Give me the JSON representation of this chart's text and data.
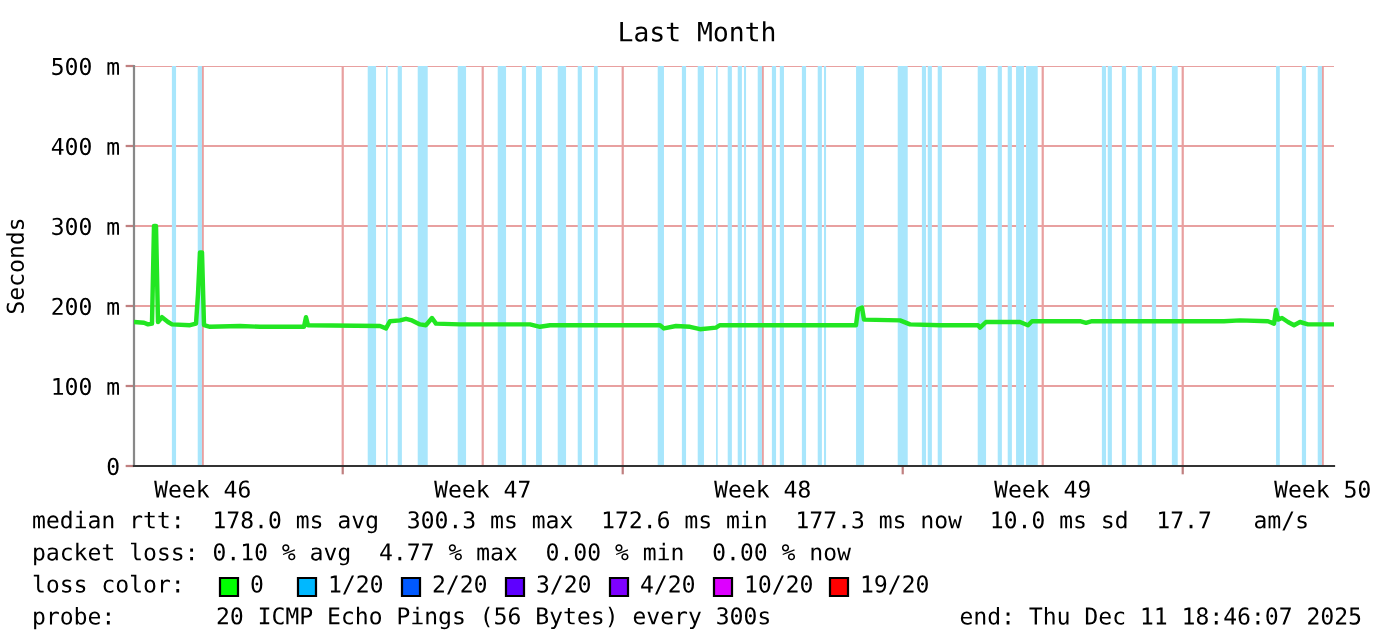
{
  "chart_data": {
    "type": "line",
    "title": "Last Month",
    "ylabel": "Seconds",
    "x": [
      "2025-11-11T18:46",
      "2025-11-12T00:46",
      "2025-11-12T03:10",
      "2025-11-12T05:34",
      "2025-11-12T06:46",
      "2025-11-12T07:58",
      "2025-11-12T09:10",
      "2025-11-12T11:34",
      "2025-11-12T15:10",
      "2025-11-12T17:34",
      "2025-11-13T04:22",
      "2025-11-13T07:58",
      "2025-11-13T09:10",
      "2025-11-13T10:22",
      "2025-11-13T11:34",
      "2025-11-13T12:46",
      "2025-11-13T16:22",
      "2025-11-14T10:22",
      "2025-11-14T22:22",
      "2025-11-16T00:46",
      "2025-11-16T01:58",
      "2025-11-16T03:10",
      "2025-11-17T22:22",
      "2025-11-18T01:58",
      "2025-11-18T04:22",
      "2025-11-18T10:22",
      "2025-11-18T13:58",
      "2025-11-18T17:34",
      "2025-11-18T22:22",
      "2025-11-19T01:58",
      "2025-11-19T05:34",
      "2025-11-19T07:58",
      "2025-11-19T22:22",
      "2025-11-21T16:22",
      "2025-11-21T22:22",
      "2025-11-22T04:22",
      "2025-11-24T22:22",
      "2025-11-25T00:46",
      "2025-11-25T07:58",
      "2025-11-25T16:22",
      "2025-11-25T22:22",
      "2025-11-26T07:58",
      "2025-11-26T10:22",
      "2025-11-29T19:58",
      "2025-11-29T21:10",
      "2025-11-29T23:34",
      "2025-11-30T00:46",
      "2025-11-30T22:22",
      "2025-12-01T04:22",
      "2025-12-01T22:22",
      "2025-12-02T21:10",
      "2025-12-02T22:22",
      "2025-12-03T01:58",
      "2025-12-03T22:22",
      "2025-12-04T03:10",
      "2025-12-04T05:34",
      "2025-12-05T10:22",
      "2025-12-05T13:58",
      "2025-12-05T17:34",
      "2025-12-07T22:22",
      "2025-12-09T00:46",
      "2025-12-09T10:22",
      "2025-12-10T03:10",
      "2025-12-10T06:46",
      "2025-12-10T07:58",
      "2025-12-10T09:10",
      "2025-12-10T11:34",
      "2025-12-10T15:10",
      "2025-12-10T18:46",
      "2025-12-10T22:22",
      "2025-12-11T03:10",
      "2025-12-11T18:46"
    ],
    "series": [
      {
        "color": "#22e622",
        "values": [
          180,
          179,
          177,
          178,
          300,
          300,
          180,
          186,
          180,
          177,
          176,
          178,
          215,
          267,
          267,
          176,
          174,
          175,
          174,
          174,
          186,
          176,
          175,
          172,
          181,
          182,
          184,
          182,
          177,
          176,
          185,
          178,
          177,
          177,
          174,
          176,
          176,
          172,
          175,
          174,
          171,
          173,
          176,
          176,
          196,
          198,
          183,
          182,
          177,
          176,
          176,
          173,
          180,
          180,
          176,
          181,
          181,
          179,
          181,
          181,
          181,
          182,
          181,
          178,
          195,
          183,
          185,
          180,
          176,
          180,
          177,
          177
        ]
      }
    ],
    "xlim": [
      "2025-11-11T18:46",
      "2025-12-11T18:46"
    ],
    "xticks": [
      {
        "value": "2025-11-13T12:00",
        "label": "Week 46"
      },
      {
        "value": "2025-11-17T00:00",
        "label": null
      },
      {
        "value": "2025-11-20T12:00",
        "label": "Week 47"
      },
      {
        "value": "2025-11-24T00:00",
        "label": null
      },
      {
        "value": "2025-11-27T12:00",
        "label": "Week 48"
      },
      {
        "value": "2025-12-01T00:00",
        "label": null
      },
      {
        "value": "2025-12-04T12:00",
        "label": "Week 49"
      },
      {
        "value": "2025-12-08T00:00",
        "label": null
      },
      {
        "value": "2025-12-11T12:00",
        "label": "Week 50"
      }
    ],
    "ylim": [
      0,
      500
    ],
    "yticks": [
      0,
      {
        "value": 100,
        "label": "100 m"
      },
      {
        "value": 200,
        "label": "200 m"
      },
      {
        "value": 300,
        "label": "300 m"
      },
      {
        "value": 400,
        "label": "400 m"
      },
      {
        "value": 500,
        "label": "500 m"
      }
    ],
    "grid": true,
    "marker": "none",
    "line_style": "solid",
    "bands": [
      {
        "axis": "x",
        "from": "2025-11-12T17:30",
        "to": "2025-11-12T20:00",
        "color": "#a8e6fc"
      },
      {
        "axis": "x",
        "from": "2025-11-13T09:00",
        "to": "2025-11-13T11:30",
        "color": "#a8e6fc"
      },
      {
        "axis": "x",
        "from": "2025-11-17T15:00",
        "to": "2025-11-17T20:00",
        "color": "#a8e6fc"
      },
      {
        "axis": "x",
        "from": "2025-11-18T02:00",
        "to": "2025-11-18T03:00",
        "color": "#a8e6fc"
      },
      {
        "axis": "x",
        "from": "2025-11-18T09:00",
        "to": "2025-11-18T11:30",
        "color": "#a8e6fc"
      },
      {
        "axis": "x",
        "from": "2025-11-18T21:00",
        "to": "2025-11-19T03:00",
        "color": "#a8e6fc"
      },
      {
        "axis": "x",
        "from": "2025-11-19T21:00",
        "to": "2025-11-20T02:00",
        "color": "#a8e6fc"
      },
      {
        "axis": "x",
        "from": "2025-11-20T21:00",
        "to": "2025-11-21T02:00",
        "color": "#a8e6fc"
      },
      {
        "axis": "x",
        "from": "2025-11-21T11:30",
        "to": "2025-11-21T14:00",
        "color": "#a8e6fc"
      },
      {
        "axis": "x",
        "from": "2025-11-21T20:00",
        "to": "2025-11-21T23:30",
        "color": "#a8e6fc"
      },
      {
        "axis": "x",
        "from": "2025-11-22T09:00",
        "to": "2025-11-22T14:00",
        "color": "#a8e6fc"
      },
      {
        "axis": "x",
        "from": "2025-11-22T21:00",
        "to": "2025-11-22T23:30",
        "color": "#a8e6fc"
      },
      {
        "axis": "x",
        "from": "2025-11-23T06:45",
        "to": "2025-11-23T09:00",
        "color": "#a8e6fc"
      },
      {
        "axis": "x",
        "from": "2025-11-24T21:00",
        "to": "2025-11-25T00:45",
        "color": "#a8e6fc"
      },
      {
        "axis": "x",
        "from": "2025-11-25T11:30",
        "to": "2025-11-25T14:00",
        "color": "#a8e6fc"
      },
      {
        "axis": "x",
        "from": "2025-11-25T21:00",
        "to": "2025-11-26T00:45",
        "color": "#a8e6fc"
      },
      {
        "axis": "x",
        "from": "2025-11-26T08:00",
        "to": "2025-11-26T09:00",
        "color": "#a8e6fc"
      },
      {
        "axis": "x",
        "from": "2025-11-26T15:00",
        "to": "2025-11-26T17:30",
        "color": "#a8e6fc"
      },
      {
        "axis": "x",
        "from": "2025-11-26T21:00",
        "to": "2025-11-26T23:30",
        "color": "#a8e6fc"
      },
      {
        "axis": "x",
        "from": "2025-11-27T00:45",
        "to": "2025-11-27T02:00",
        "color": "#a8e6fc"
      },
      {
        "axis": "x",
        "from": "2025-11-27T09:00",
        "to": "2025-11-27T11:30",
        "color": "#a8e6fc"
      },
      {
        "axis": "x",
        "from": "2025-11-27T17:30",
        "to": "2025-11-27T20:00",
        "color": "#a8e6fc"
      },
      {
        "axis": "x",
        "from": "2025-11-27T22:15",
        "to": "2025-11-28T00:45",
        "color": "#a8e6fc"
      },
      {
        "axis": "x",
        "from": "2025-11-28T11:30",
        "to": "2025-11-28T14:00",
        "color": "#a8e6fc"
      },
      {
        "axis": "x",
        "from": "2025-11-28T21:00",
        "to": "2025-11-28T23:30",
        "color": "#a8e6fc"
      },
      {
        "axis": "x",
        "from": "2025-11-29T00:45",
        "to": "2025-11-29T02:00",
        "color": "#a8e6fc"
      },
      {
        "axis": "x",
        "from": "2025-11-29T20:00",
        "to": "2025-11-30T00:45",
        "color": "#a8e6fc"
      },
      {
        "axis": "x",
        "from": "2025-11-30T21:00",
        "to": "2025-12-01T03:00",
        "color": "#a8e6fc"
      },
      {
        "axis": "x",
        "from": "2025-12-01T11:30",
        "to": "2025-12-01T14:00",
        "color": "#a8e6fc"
      },
      {
        "axis": "x",
        "from": "2025-12-01T15:00",
        "to": "2025-12-01T17:30",
        "color": "#a8e6fc"
      },
      {
        "axis": "x",
        "from": "2025-12-01T21:00",
        "to": "2025-12-01T23:30",
        "color": "#a8e6fc"
      },
      {
        "axis": "x",
        "from": "2025-12-02T21:00",
        "to": "2025-12-03T02:00",
        "color": "#a8e6fc"
      },
      {
        "axis": "x",
        "from": "2025-12-03T09:00",
        "to": "2025-12-03T11:30",
        "color": "#a8e6fc"
      },
      {
        "axis": "x",
        "from": "2025-12-03T15:00",
        "to": "2025-12-03T17:30",
        "color": "#a8e6fc"
      },
      {
        "axis": "x",
        "from": "2025-12-03T20:00",
        "to": "2025-12-04T00:45",
        "color": "#a8e6fc"
      },
      {
        "axis": "x",
        "from": "2025-12-04T02:00",
        "to": "2025-12-04T09:00",
        "color": "#a8e6fc"
      },
      {
        "axis": "x",
        "from": "2025-12-05T23:30",
        "to": "2025-12-06T02:00",
        "color": "#a8e6fc"
      },
      {
        "axis": "x",
        "from": "2025-12-06T03:00",
        "to": "2025-12-06T05:30",
        "color": "#a8e6fc"
      },
      {
        "axis": "x",
        "from": "2025-12-06T11:30",
        "to": "2025-12-06T14:00",
        "color": "#a8e6fc"
      },
      {
        "axis": "x",
        "from": "2025-12-06T21:00",
        "to": "2025-12-06T23:30",
        "color": "#a8e6fc"
      },
      {
        "axis": "x",
        "from": "2025-12-07T05:30",
        "to": "2025-12-07T08:00",
        "color": "#a8e6fc"
      },
      {
        "axis": "x",
        "from": "2025-12-07T17:30",
        "to": "2025-12-07T21:00",
        "color": "#a8e6fc"
      },
      {
        "axis": "x",
        "from": "2025-12-10T08:00",
        "to": "2025-12-10T10:15",
        "color": "#a8e6fc"
      },
      {
        "axis": "x",
        "from": "2025-12-10T23:30",
        "to": "2025-12-11T02:00",
        "color": "#a8e6fc"
      },
      {
        "axis": "x",
        "from": "2025-12-11T09:00",
        "to": "2025-12-11T11:30",
        "color": "#a8e6fc"
      }
    ],
    "annotations": [
      "median rtt:  178.0 ms avg  300.3 ms max  172.6 ms min  177.3 ms now  10.0 ms sd  17.7   am/s",
      "packet loss: 0.10 % avg  4.77 % max  0.00 % min  0.00 % now",
      "loss color:",
      "0",
      "1/20",
      "2/20",
      "3/20",
      "4/20",
      "10/20",
      "19/20",
      "probe:",
      "20 ICMP Echo Pings (56 Bytes) every 300s",
      "end: Thu Dec 11 18:46:07 2025"
    ]
  }
}
